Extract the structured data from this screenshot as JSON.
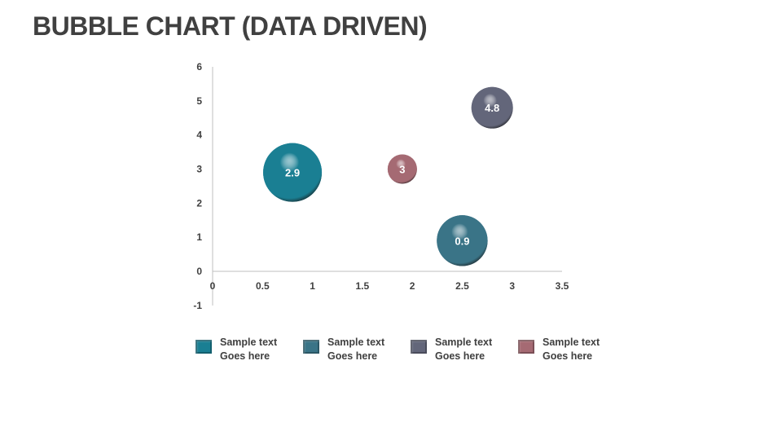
{
  "title": "BUBBLE CHART (DATA DRIVEN)",
  "chart_data": {
    "type": "bubble",
    "title": "",
    "xlim": [
      0,
      3.5
    ],
    "ylim": [
      -1,
      6
    ],
    "x_ticks": [
      "0",
      "0.5",
      "1",
      "1.5",
      "2",
      "2.5",
      "3",
      "3.5"
    ],
    "y_ticks": [
      "-1",
      "0",
      "1",
      "2",
      "3",
      "4",
      "5",
      "6"
    ],
    "grid": false,
    "legend_position": "bottom",
    "points": [
      {
        "x": 0.8,
        "y": 2.9,
        "size": 4,
        "label": "2.9",
        "color": "#1a7f93"
      },
      {
        "x": 2.5,
        "y": 0.9,
        "size": 3,
        "label": "0.9",
        "color": "#3a7487"
      },
      {
        "x": 2.8,
        "y": 4.8,
        "size": 2,
        "label": "4.8",
        "color": "#63667a"
      },
      {
        "x": 1.9,
        "y": 3.0,
        "size": 1,
        "label": "3",
        "color": "#a56a73"
      }
    ]
  },
  "legend": [
    {
      "line1": "Sample text",
      "line2": "Goes here",
      "color": "#1a7f93"
    },
    {
      "line1": "Sample text",
      "line2": "Goes here",
      "color": "#3a7487"
    },
    {
      "line1": "Sample text",
      "line2": "Goes here",
      "color": "#63667a"
    },
    {
      "line1": "Sample text",
      "line2": "Goes here",
      "color": "#a56a73"
    }
  ]
}
